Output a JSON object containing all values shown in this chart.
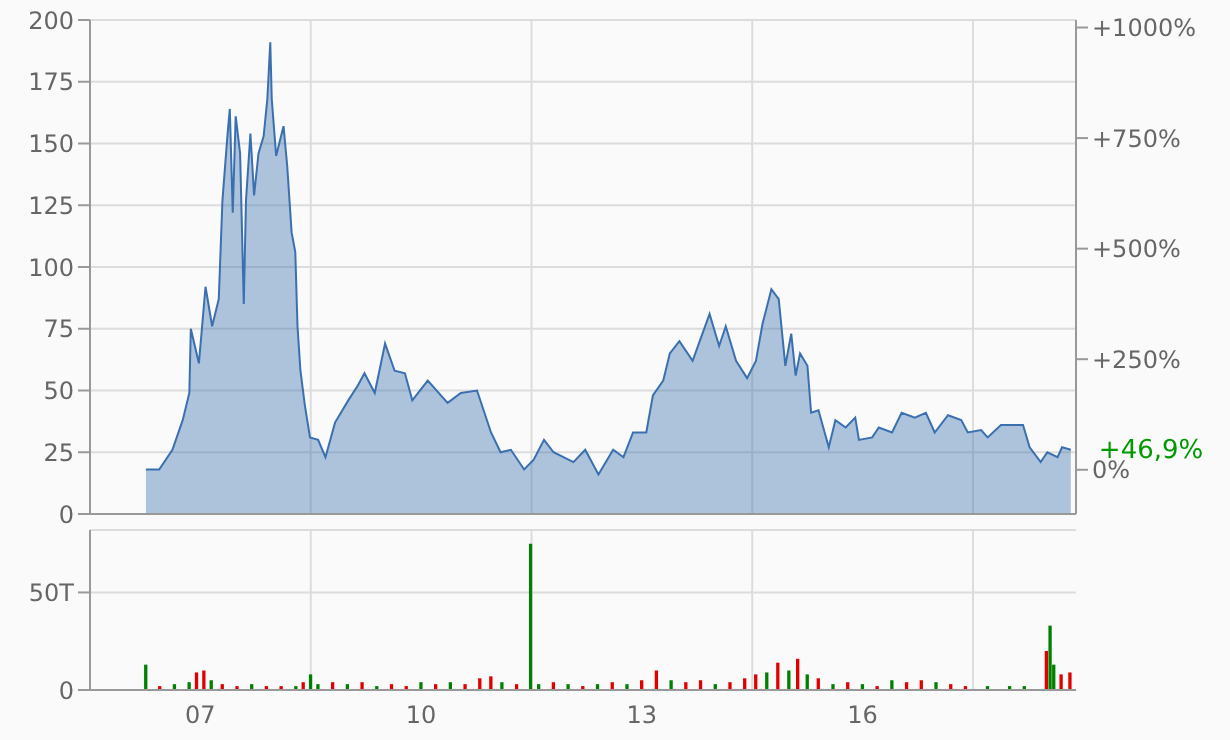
{
  "chart_data": [
    {
      "type": "area",
      "xlim": [
        2005.5,
        2018.9
      ],
      "xticks": [
        {
          "value": 2008.5,
          "label": null
        },
        {
          "value": 2011.5,
          "label": null
        },
        {
          "value": 2014.5,
          "label": null
        },
        {
          "value": 2017.5,
          "label": null
        }
      ],
      "ylim": [
        0,
        200
      ],
      "yticks": [
        0,
        25,
        50,
        75,
        100,
        125,
        150,
        175,
        200
      ],
      "y2lim": [
        -100,
        1017
      ],
      "y2ticks": [
        {
          "value": 0,
          "label": "0%"
        },
        {
          "value": 250,
          "label": "+250%"
        },
        {
          "value": 500,
          "label": "+500%"
        },
        {
          "value": 750,
          "label": "+750%"
        },
        {
          "value": 1000,
          "label": "+1000%"
        }
      ],
      "tick_labels": "y",
      "grid": true,
      "legend": false,
      "annotations": [
        {
          "text": "+46,9%",
          "x": 2018.83,
          "y": 26.3
        }
      ],
      "series": [
        {
          "color": "#3a70b0",
          "x": [
            2006.26,
            2006.44,
            2006.62,
            2006.76,
            2006.85,
            2006.87,
            2006.98,
            2007.07,
            2007.16,
            2007.25,
            2007.3,
            2007.37,
            2007.4,
            2007.44,
            2007.48,
            2007.54,
            2007.59,
            2007.62,
            2007.68,
            2007.73,
            2007.79,
            2007.86,
            2007.91,
            2007.95,
            2007.97,
            2008.03,
            2008.13,
            2008.18,
            2008.24,
            2008.29,
            2008.32,
            2008.36,
            2008.42,
            2008.49,
            2008.6,
            2008.7,
            2008.83,
            2009.01,
            2009.14,
            2009.23,
            2009.37,
            2009.51,
            2009.64,
            2009.78,
            2009.88,
            2010.09,
            2010.36,
            2010.54,
            2010.76,
            2010.95,
            2011.08,
            2011.22,
            2011.4,
            2011.53,
            2011.67,
            2011.8,
            2012.07,
            2012.23,
            2012.41,
            2012.61,
            2012.75,
            2012.88,
            2013.06,
            2013.15,
            2013.29,
            2013.38,
            2013.51,
            2013.69,
            2013.92,
            2014.05,
            2014.14,
            2014.28,
            2014.43,
            2014.55,
            2014.64,
            2014.76,
            2014.86,
            2014.95,
            2015.03,
            2015.09,
            2015.15,
            2015.25,
            2015.3,
            2015.4,
            2015.54,
            2015.63,
            2015.77,
            2015.9,
            2015.95,
            2016.13,
            2016.22,
            2016.4,
            2016.53,
            2016.71,
            2016.86,
            2016.98,
            2017.16,
            2017.34,
            2017.43,
            2017.61,
            2017.7,
            2017.88,
            2018.18,
            2018.27,
            2018.42,
            2018.51,
            2018.65,
            2018.71,
            2018.83
          ],
          "values": [
            18,
            18,
            26,
            38,
            49,
            75,
            61,
            92,
            76,
            87,
            127,
            154,
            164,
            122,
            161,
            146,
            85,
            127,
            154,
            129,
            146,
            153,
            168,
            191,
            168,
            145,
            157,
            141,
            114,
            106,
            76,
            58,
            44,
            31,
            30,
            23,
            37,
            46,
            52,
            57,
            49,
            69,
            58,
            57,
            46,
            54,
            45,
            49,
            50,
            33,
            25,
            26,
            18,
            22,
            30,
            25,
            21,
            26,
            16,
            26,
            23,
            33,
            33,
            48,
            54,
            65,
            70,
            62,
            81,
            68,
            76,
            62,
            55,
            62,
            77,
            91,
            87,
            60,
            73,
            56,
            65,
            60,
            41,
            42,
            27,
            38,
            35,
            39,
            30,
            31,
            35,
            33,
            41,
            39,
            41,
            33,
            40,
            38,
            33,
            34,
            31,
            36,
            36,
            27,
            21,
            25,
            23,
            27,
            26
          ]
        }
      ]
    },
    {
      "type": "bar",
      "xlim": [
        2005.5,
        2018.9
      ],
      "xticks": [
        {
          "value": 2007,
          "label": "07"
        },
        {
          "value": 2008.5,
          "label": null
        },
        {
          "value": 2010,
          "label": "10"
        },
        {
          "value": 2011.5,
          "label": null
        },
        {
          "value": 2013,
          "label": "13"
        },
        {
          "value": 2014.5,
          "label": null
        },
        {
          "value": 2016,
          "label": "16"
        },
        {
          "value": 2017.5,
          "label": null
        }
      ],
      "ylim": [
        0,
        82
      ],
      "yticks": [
        0,
        {
          "value": 50,
          "label": "50T"
        }
      ],
      "grid": true,
      "legend": false,
      "x": [
        2006.26,
        2006.45,
        2006.65,
        2006.85,
        2006.95,
        2007.05,
        2007.15,
        2007.3,
        2007.5,
        2007.7,
        2007.9,
        2008.1,
        2008.3,
        2008.4,
        2008.5,
        2008.6,
        2008.8,
        2009.0,
        2009.2,
        2009.4,
        2009.6,
        2009.8,
        2010.0,
        2010.2,
        2010.4,
        2010.6,
        2010.8,
        2010.95,
        2011.1,
        2011.3,
        2011.49,
        2011.6,
        2011.8,
        2012.0,
        2012.2,
        2012.4,
        2012.6,
        2012.8,
        2013.0,
        2013.2,
        2013.4,
        2013.6,
        2013.8,
        2014.0,
        2014.2,
        2014.4,
        2014.55,
        2014.7,
        2014.85,
        2015.0,
        2015.12,
        2015.25,
        2015.4,
        2015.6,
        2015.8,
        2016.0,
        2016.2,
        2016.4,
        2016.6,
        2016.8,
        2017.0,
        2017.2,
        2017.4,
        2017.7,
        2018.0,
        2018.2,
        2018.5,
        2018.55,
        2018.6,
        2018.7,
        2018.82
      ],
      "values": [
        13,
        2,
        3,
        4,
        9,
        10,
        5,
        3,
        2,
        3,
        2,
        2,
        2,
        4,
        8,
        3,
        4,
        3,
        4,
        2,
        3,
        2,
        4,
        3,
        4,
        3,
        6,
        7,
        4,
        3,
        75,
        3,
        4,
        3,
        2,
        3,
        4,
        3,
        5,
        10,
        5,
        4,
        5,
        3,
        4,
        6,
        8,
        9,
        14,
        10,
        16,
        8,
        6,
        3,
        4,
        3,
        2,
        5,
        4,
        5,
        4,
        3,
        2,
        2,
        2,
        2,
        20,
        33,
        13,
        8,
        9
      ],
      "colors": [
        "#008000",
        "#e00000",
        "#008000",
        "#008000",
        "#e00000",
        "#e00000",
        "#008000",
        "#e00000",
        "#e00000",
        "#008000",
        "#e00000",
        "#e00000",
        "#008000",
        "#e00000",
        "#008000",
        "#008000",
        "#e00000",
        "#008000",
        "#e00000",
        "#008000",
        "#e00000",
        "#e00000",
        "#008000",
        "#e00000",
        "#008000",
        "#e00000",
        "#e00000",
        "#e00000",
        "#008000",
        "#e00000",
        "#008000",
        "#008000",
        "#e00000",
        "#008000",
        "#e00000",
        "#008000",
        "#e00000",
        "#008000",
        "#e00000",
        "#e00000",
        "#008000",
        "#e00000",
        "#e00000",
        "#008000",
        "#e00000",
        "#e00000",
        "#e00000",
        "#008000",
        "#e00000",
        "#008000",
        "#e00000",
        "#008000",
        "#e00000",
        "#008000",
        "#e00000",
        "#008000",
        "#e00000",
        "#008000",
        "#e00000",
        "#e00000",
        "#008000",
        "#e00000",
        "#e00000",
        "#008000",
        "#008000",
        "#008000",
        "#e00000",
        "#008000",
        "#008000",
        "#e00000",
        "#e00000"
      ]
    }
  ]
}
